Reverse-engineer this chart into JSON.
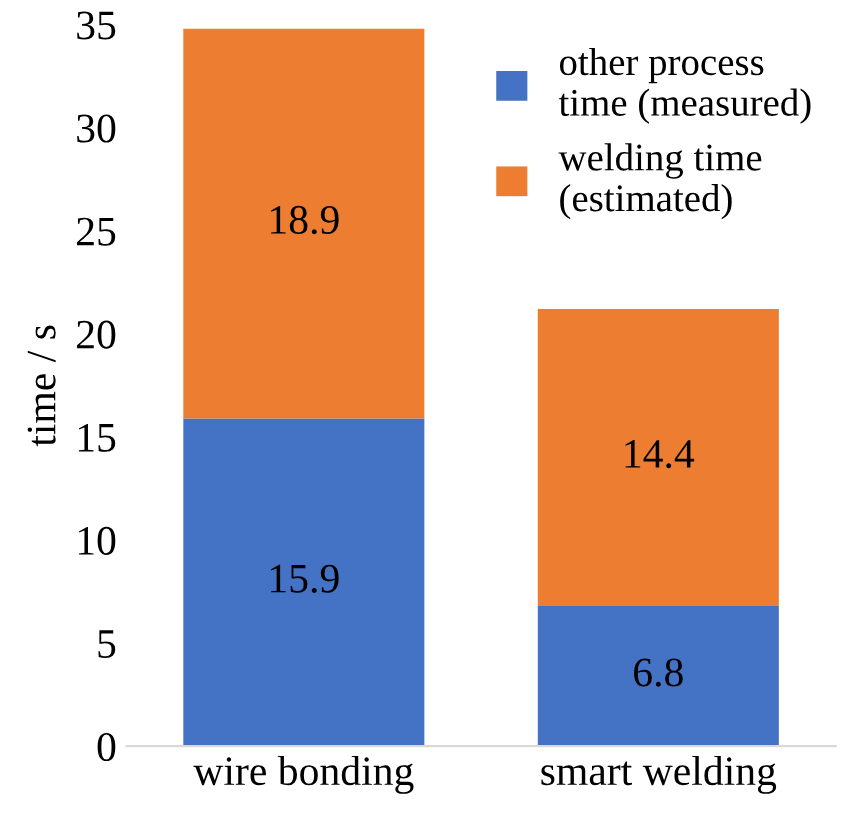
{
  "chart_data": {
    "type": "bar",
    "stacked": true,
    "categories": [
      "wire bonding",
      "smart welding"
    ],
    "series": [
      {
        "name": "other process\ntime (measured)",
        "color": "#4472c4",
        "values": [
          15.9,
          6.8
        ]
      },
      {
        "name": "welding time\n(estimated)",
        "color": "#ed7d31",
        "values": [
          18.9,
          14.4
        ]
      }
    ],
    "ylabel": "time / s",
    "ylim": [
      0,
      35
    ],
    "yticks": [
      0,
      5,
      10,
      15,
      20,
      25,
      30,
      35
    ],
    "grid": false,
    "legend": "top right",
    "data_labels": true
  }
}
